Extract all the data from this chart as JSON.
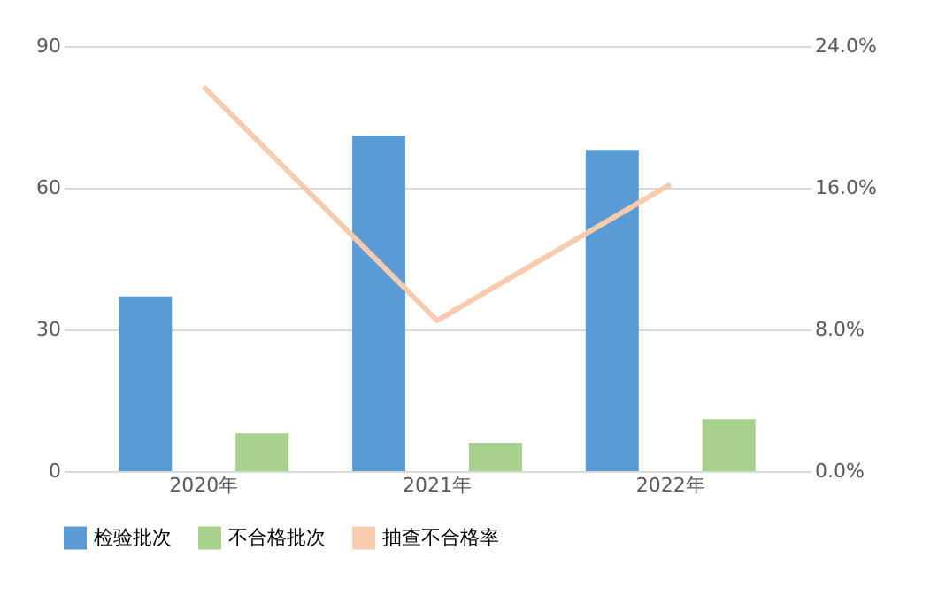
{
  "chart_data": {
    "type": "bar",
    "categories": [
      "2020年",
      "2021年",
      "2022年"
    ],
    "series": [
      {
        "name": "检验批次",
        "color": "#5b9bd5",
        "values": [
          37,
          71,
          68
        ]
      },
      {
        "name": "不合格批次",
        "color": "#a9d18e",
        "values": [
          8,
          6,
          11
        ]
      },
      {
        "name": "抽查不合格率",
        "color": "#f8cbad",
        "type": "line",
        "axis": "y2",
        "values": [
          21.7,
          8.5,
          16.2
        ]
      }
    ],
    "ylim": [
      0,
      90
    ],
    "yticks": [
      0,
      30,
      60,
      90
    ],
    "y2lim": [
      0,
      24
    ],
    "y2ticks": [
      {
        "value": 0,
        "label": "0.0%"
      },
      {
        "value": 8,
        "label": "8.0%"
      },
      {
        "value": 16,
        "label": "16.0%"
      },
      {
        "value": 24,
        "label": "24.0%"
      }
    ],
    "grid": "y",
    "legend": "bottom",
    "marker": "none",
    "line_style": "solid"
  }
}
